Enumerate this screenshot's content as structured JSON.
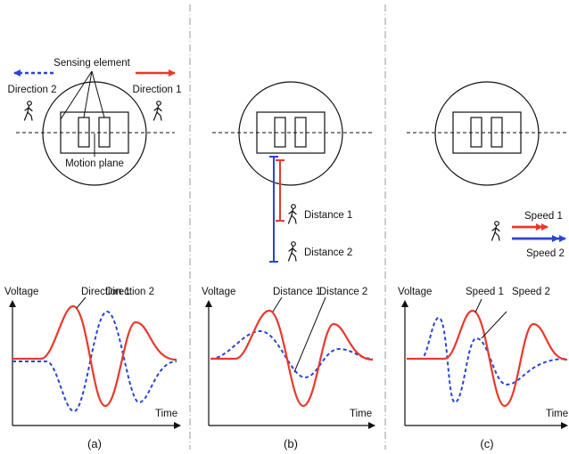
{
  "colors": {
    "red": "#e8392b",
    "blue": "#2a44d8",
    "ink": "#111111",
    "divider": "#9a9a9a"
  },
  "panel_a": {
    "caption": "(a)",
    "direction_left_label": "Direction 2",
    "direction_right_label": "Direction 1",
    "sensing_label": "Sensing element",
    "motion_plane_label": "Motion plane",
    "y_axis_label": "Voltage",
    "x_axis_label": "Time",
    "curve_label_1": "Direction 1",
    "curve_label_2": "Direction 2"
  },
  "panel_b": {
    "caption": "(b)",
    "distance_label_1": "Distance 1",
    "distance_label_2": "Distance 2",
    "y_axis_label": "Voltage",
    "x_axis_label": "Time",
    "curve_label_1": "Distance 1",
    "curve_label_2": "Distance 2"
  },
  "panel_c": {
    "caption": "(c)",
    "speed_label_1": "Speed 1",
    "speed_label_2": "Speed 2",
    "y_axis_label": "Voltage",
    "x_axis_label": "Time",
    "curve_label_1": "Speed 1",
    "curve_label_2": "Speed 2"
  }
}
